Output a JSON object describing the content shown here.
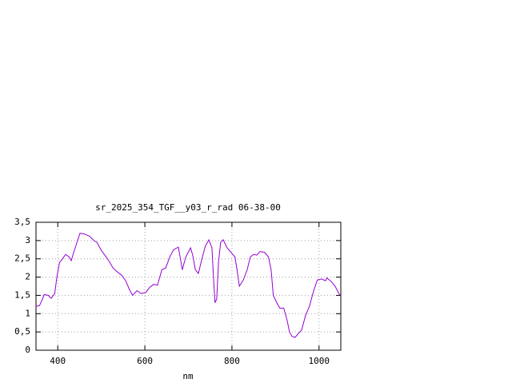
{
  "chart_data": {
    "type": "line",
    "title": "sr_2025_354_TGF__y03_r_rad 06-38-00",
    "x_label": "nm",
    "xlim": [
      350,
      1050
    ],
    "xticks": [
      400,
      600,
      800,
      1000
    ],
    "ylim": [
      0,
      3.5
    ],
    "yticks": [
      0,
      {
        "value": 0.5,
        "label": "0,5"
      },
      1,
      {
        "value": 1.5,
        "label": "1,5"
      },
      2,
      {
        "value": 2.5,
        "label": "2,5"
      },
      3,
      {
        "value": 3.5,
        "label": "3,5"
      }
    ],
    "grid": true,
    "series": [
      {
        "color": "#9400d3",
        "x": [
          350,
          358,
          363,
          369,
          378,
          385,
          393,
          398,
          404,
          411,
          418,
          426,
          431,
          437,
          444,
          451,
          461,
          473,
          483,
          490,
          499,
          508,
          517,
          527,
          536,
          547,
          556,
          565,
          572,
          582,
          591,
          602,
          611,
          620,
          629,
          639,
          648,
          657,
          666,
          677,
          686,
          694,
          705,
          710,
          716,
          723,
          730,
          739,
          747,
          754,
          758,
          761,
          765,
          769,
          774,
          780,
          789,
          802,
          807,
          813,
          817,
          826,
          835,
          842,
          850,
          857,
          864,
          875,
          884,
          890,
          895,
          903,
          910,
          919,
          927,
          932,
          938,
          945,
          952,
          960,
          969,
          978,
          987,
          996,
          1006,
          1015,
          1018,
          1028,
          1037,
          1048
        ],
        "values": [
          1.2,
          1.22,
          1.35,
          1.52,
          1.5,
          1.42,
          1.55,
          2.0,
          2.4,
          2.5,
          2.62,
          2.55,
          2.45,
          2.7,
          2.95,
          3.2,
          3.18,
          3.12,
          3.0,
          2.95,
          2.75,
          2.6,
          2.45,
          2.25,
          2.15,
          2.05,
          1.9,
          1.65,
          1.5,
          1.63,
          1.55,
          1.58,
          1.72,
          1.8,
          1.78,
          2.2,
          2.25,
          2.55,
          2.75,
          2.82,
          2.2,
          2.55,
          2.8,
          2.6,
          2.2,
          2.1,
          2.45,
          2.85,
          3.02,
          2.8,
          1.9,
          1.3,
          1.4,
          2.4,
          2.95,
          3.02,
          2.8,
          2.62,
          2.55,
          2.1,
          1.75,
          1.92,
          2.2,
          2.55,
          2.62,
          2.6,
          2.7,
          2.68,
          2.55,
          2.2,
          1.5,
          1.3,
          1.15,
          1.15,
          0.8,
          0.5,
          0.38,
          0.35,
          0.45,
          0.55,
          0.95,
          1.2,
          1.6,
          1.92,
          1.95,
          1.9,
          1.98,
          1.88,
          1.75,
          1.5
        ]
      }
    ]
  }
}
